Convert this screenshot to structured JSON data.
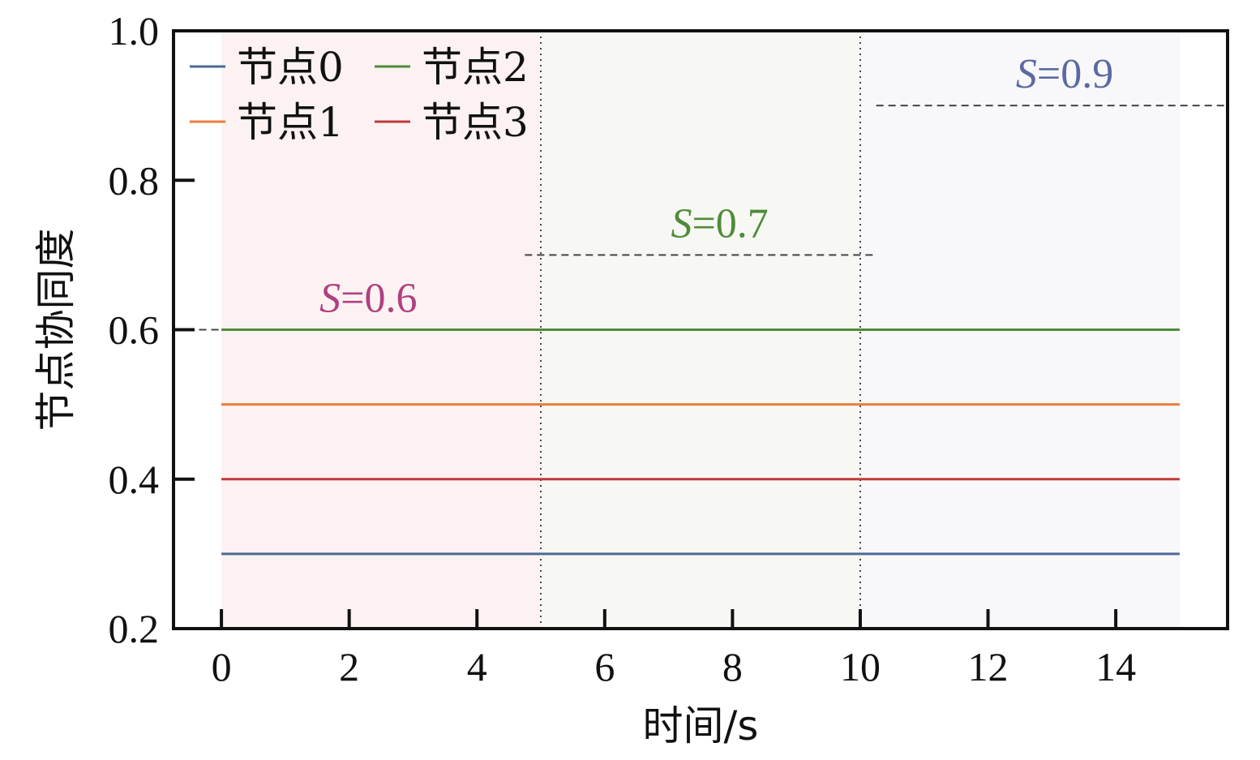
{
  "chart_data": {
    "type": "line",
    "xlabel": "时间/s",
    "ylabel": "节点协同度",
    "xlim": [
      -0.75,
      15.75
    ],
    "ylim": [
      0.2,
      1.0
    ],
    "xticks": [
      0,
      2,
      4,
      6,
      8,
      10,
      12,
      14
    ],
    "yticks": [
      0.2,
      0.4,
      0.6,
      0.8,
      1.0
    ],
    "ytick_labels": [
      "0.2",
      "0.4",
      "0.6",
      "0.8",
      "1.0"
    ],
    "grid": false,
    "legend_position": "top-left",
    "series": [
      {
        "name": "节点0",
        "color": "#4a6a96",
        "x": [
          0,
          15
        ],
        "y": [
          0.3,
          0.3
        ]
      },
      {
        "name": "节点1",
        "color": "#ea7e3a",
        "x": [
          0,
          15
        ],
        "y": [
          0.5,
          0.5
        ]
      },
      {
        "name": "节点2",
        "color": "#4e8c3a",
        "x": [
          0,
          15
        ],
        "y": [
          0.6,
          0.6
        ]
      },
      {
        "name": "节点3",
        "color": "#c0393b",
        "x": [
          0,
          15
        ],
        "y": [
          0.4,
          0.4
        ]
      }
    ],
    "regions": [
      {
        "x": [
          0,
          5
        ],
        "color": "#fdf2f2"
      },
      {
        "x": [
          5,
          10
        ],
        "color": "#f7f8f3"
      },
      {
        "x": [
          10,
          15
        ],
        "color": "#f8f8fb"
      }
    ],
    "vlines": [
      5,
      10
    ],
    "thresholds": [
      {
        "label_var": "S",
        "label_value": "=0.6",
        "value": 0.6,
        "x": [
          -0.35,
          5
        ],
        "label_x": 2.3,
        "label_color": "#b04080"
      },
      {
        "label_var": "S",
        "label_value": "=0.7",
        "value": 0.7,
        "x": [
          4.75,
          10.25
        ],
        "label_x": 7.8,
        "label_color": "#4e8c3a"
      },
      {
        "label_var": "S",
        "label_value": "=0.9",
        "value": 0.9,
        "x": [
          10.25,
          15.75
        ],
        "label_x": 13.2,
        "label_color": "#5a6aa0"
      }
    ]
  }
}
